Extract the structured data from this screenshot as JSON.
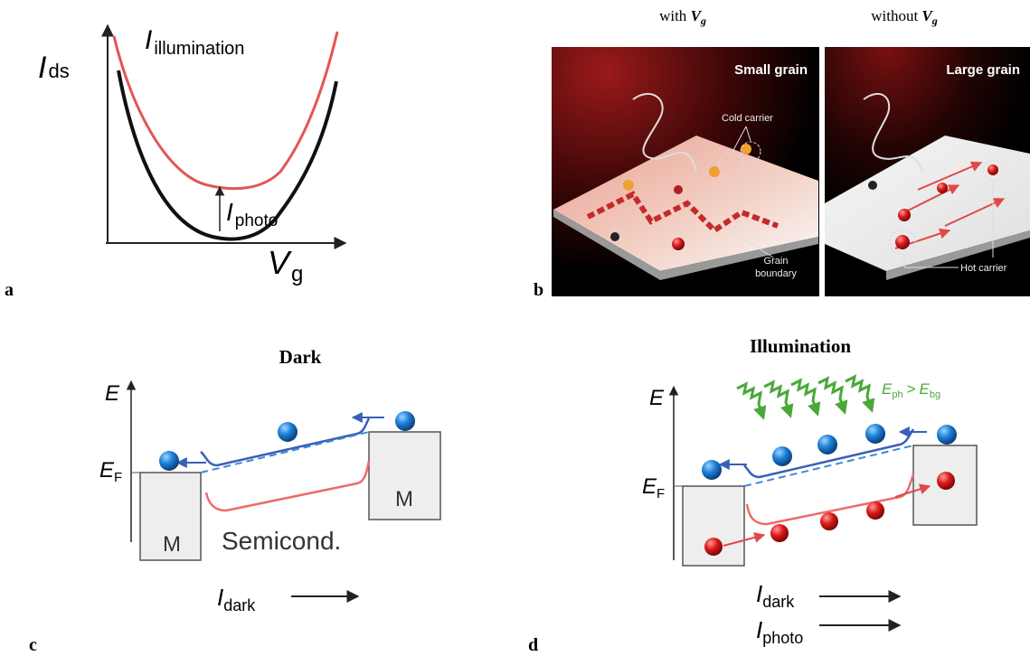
{
  "panels": [
    {
      "label": "a",
      "y_axis": {
        "symbol": "I",
        "sub": "ds"
      },
      "x_axis": {
        "symbol": "V",
        "sub": "g"
      },
      "curve_label": {
        "symbol": "I",
        "sub": "illumination"
      },
      "arrow_label": {
        "symbol": "I",
        "sub": "photo"
      }
    },
    {
      "label": "b",
      "headers": [
        {
          "text": "with",
          "symbol": "V",
          "sub": "g"
        },
        {
          "text": "without",
          "symbol": "V",
          "sub": "g"
        }
      ],
      "images": [
        {
          "title": "Small grain",
          "callouts": [
            "Cold carrier",
            "Grain",
            "boundary"
          ]
        },
        {
          "title": "Large grain",
          "callouts": [
            "Hot carrier"
          ]
        }
      ]
    },
    {
      "label": "c",
      "title": "Dark",
      "energy": "E",
      "fermi": {
        "symbol": "E",
        "sub": "F"
      },
      "metals": [
        "M",
        "M"
      ],
      "material": "Semicond.",
      "currents": [
        {
          "symbol": "I",
          "sub": "dark"
        }
      ]
    },
    {
      "label": "d",
      "title": "Illumination",
      "energy": "E",
      "fermi": {
        "symbol": "E",
        "sub": "F"
      },
      "photon": {
        "lhs": {
          "symbol": "E",
          "sub": "ph"
        },
        "op": ">",
        "rhs": {
          "symbol": "E",
          "sub": "bg"
        }
      },
      "currents": [
        {
          "symbol": "I",
          "sub": "dark"
        },
        {
          "symbol": "I",
          "sub": "photo"
        }
      ]
    }
  ]
}
